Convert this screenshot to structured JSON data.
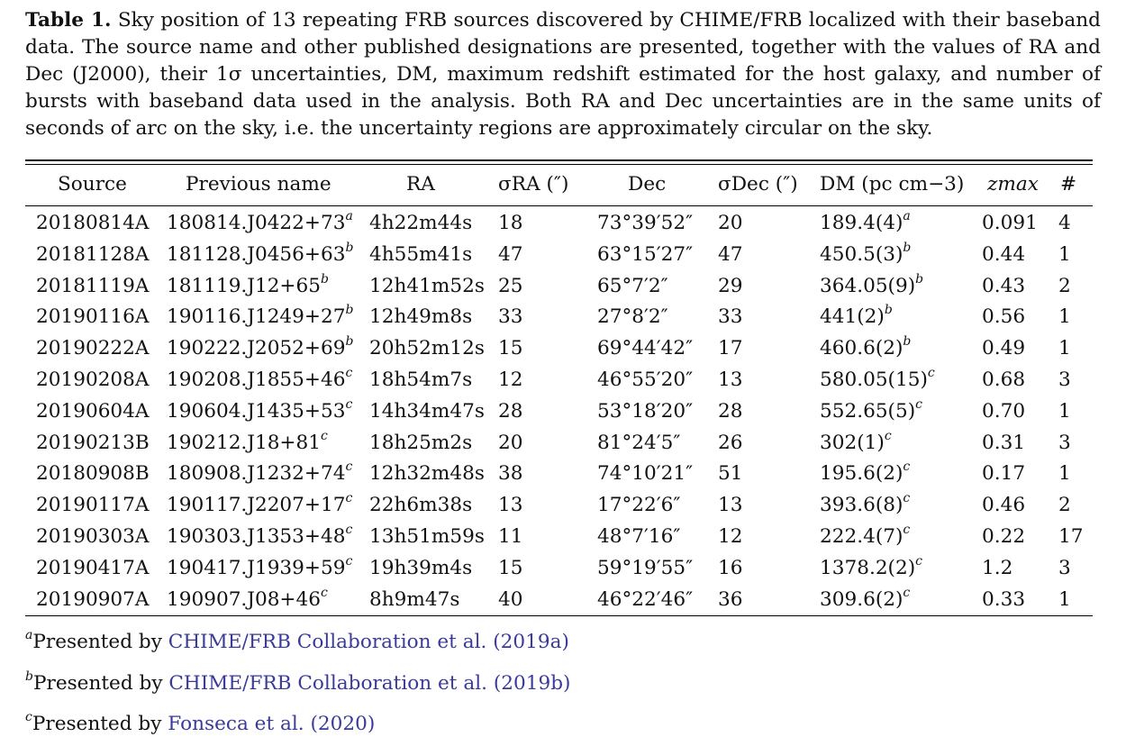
{
  "caption": {
    "label": "Table 1.",
    "text": "Sky position of 13 repeating FRB sources discovered by CHIME/FRB localized with their baseband data. The source name and other published designations are presented, together with the values of RA and Dec (J2000), their 1σ uncertainties, DM, maximum redshift estimated for the host galaxy, and number of bursts with baseband data used in the analysis. Both RA and Dec uncertainties are in the same units of seconds of arc on the sky, i.e. the uncertainty regions are approximately circular on the sky."
  },
  "headers": {
    "source": "Source",
    "previous_name": "Previous name",
    "ra": "RA",
    "sigma_ra": "σRA (″)",
    "dec": "Dec",
    "sigma_dec": "σDec (″)",
    "dm": "DM (pc cm−3)",
    "zmax": "zmax",
    "count": "#"
  },
  "rows": [
    {
      "source": "20180814A",
      "prev": "180814.J0422+73",
      "prev_ref": "a",
      "ra": "4h22m44s",
      "sra": "18",
      "dec": "73°39′52″",
      "sdec": "20",
      "dm": "189.4(4)",
      "dm_ref": "a",
      "z": "0.091",
      "n": "4"
    },
    {
      "source": "20181128A",
      "prev": "181128.J0456+63",
      "prev_ref": "b",
      "ra": "4h55m41s",
      "sra": "47",
      "dec": "63°15′27″",
      "sdec": "47",
      "dm": "450.5(3)",
      "dm_ref": "b",
      "z": "0.44",
      "n": "1"
    },
    {
      "source": "20181119A",
      "prev": "181119.J12+65",
      "prev_ref": "b",
      "ra": "12h41m52s",
      "sra": "25",
      "dec": "65°7′2″",
      "sdec": "29",
      "dm": "364.05(9)",
      "dm_ref": "b",
      "z": "0.43",
      "n": "2"
    },
    {
      "source": "20190116A",
      "prev": "190116.J1249+27",
      "prev_ref": "b",
      "ra": "12h49m8s",
      "sra": "33",
      "dec": "27°8′2″",
      "sdec": "33",
      "dm": "441(2)",
      "dm_ref": "b",
      "z": "0.56",
      "n": "1"
    },
    {
      "source": "20190222A",
      "prev": "190222.J2052+69",
      "prev_ref": "b",
      "ra": "20h52m12s",
      "sra": "15",
      "dec": "69°44′42″",
      "sdec": "17",
      "dm": "460.6(2)",
      "dm_ref": "b",
      "z": "0.49",
      "n": "1"
    },
    {
      "source": "20190208A",
      "prev": "190208.J1855+46",
      "prev_ref": "c",
      "ra": "18h54m7s",
      "sra": "12",
      "dec": "46°55′20″",
      "sdec": "13",
      "dm": "580.05(15)",
      "dm_ref": "c",
      "z": "0.68",
      "n": "3"
    },
    {
      "source": "20190604A",
      "prev": "190604.J1435+53",
      "prev_ref": "c",
      "ra": "14h34m47s",
      "sra": "28",
      "dec": "53°18′20″",
      "sdec": "28",
      "dm": "552.65(5)",
      "dm_ref": "c",
      "z": "0.70",
      "n": "1"
    },
    {
      "source": "20190213B",
      "prev": "190212.J18+81",
      "prev_ref": "c",
      "ra": "18h25m2s",
      "sra": "20",
      "dec": "81°24′5″",
      "sdec": "26",
      "dm": "302(1)",
      "dm_ref": "c",
      "z": "0.31",
      "n": "3"
    },
    {
      "source": "20180908B",
      "prev": "180908.J1232+74",
      "prev_ref": "c",
      "ra": "12h32m48s",
      "sra": "38",
      "dec": "74°10′21″",
      "sdec": "51",
      "dm": "195.6(2)",
      "dm_ref": "c",
      "z": "0.17",
      "n": "1"
    },
    {
      "source": "20190117A",
      "prev": "190117.J2207+17",
      "prev_ref": "c",
      "ra": "22h6m38s",
      "sra": "13",
      "dec": "17°22′6″",
      "sdec": "13",
      "dm": "393.6(8)",
      "dm_ref": "c",
      "z": "0.46",
      "n": "2"
    },
    {
      "source": "20190303A",
      "prev": "190303.J1353+48",
      "prev_ref": "c",
      "ra": "13h51m59s",
      "sra": "11",
      "dec": "48°7′16″",
      "sdec": "12",
      "dm": "222.4(7)",
      "dm_ref": "c",
      "z": "0.22",
      "n": "17"
    },
    {
      "source": "20190417A",
      "prev": "190417.J1939+59",
      "prev_ref": "c",
      "ra": "19h39m4s",
      "sra": "15",
      "dec": "59°19′55″",
      "sdec": "16",
      "dm": "1378.2(2)",
      "dm_ref": "c",
      "z": "1.2",
      "n": "3"
    },
    {
      "source": "20190907A",
      "prev": "190907.J08+46",
      "prev_ref": "c",
      "ra": "8h9m47s",
      "sra": "40",
      "dec": "46°22′46″",
      "sdec": "36",
      "dm": "309.6(2)",
      "dm_ref": "c",
      "z": "0.33",
      "n": "1"
    }
  ],
  "notes": [
    {
      "mark": "a",
      "text": "Presented by ",
      "link": "CHIME/FRB Collaboration et al. (2019a)"
    },
    {
      "mark": "b",
      "text": "Presented by ",
      "link": "CHIME/FRB Collaboration et al. (2019b)"
    },
    {
      "mark": "c",
      "text": "Presented by ",
      "link": "Fonseca et al. (2020)"
    }
  ]
}
